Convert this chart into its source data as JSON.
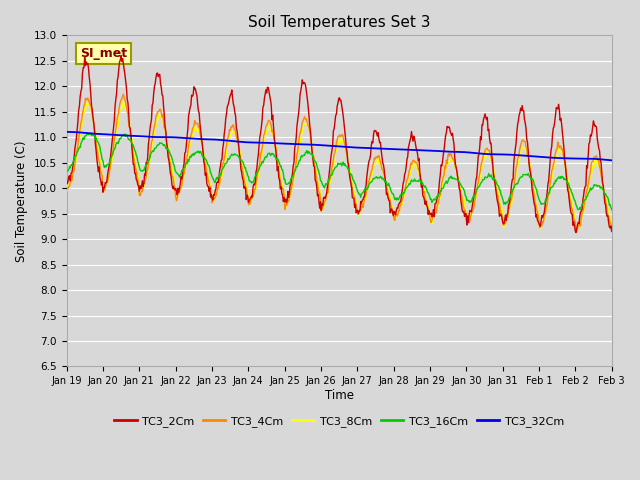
{
  "title": "Soil Temperatures Set 3",
  "xlabel": "Time",
  "ylabel": "Soil Temperature (C)",
  "ylim": [
    6.5,
    13.0
  ],
  "yticks": [
    6.5,
    7.0,
    7.5,
    8.0,
    8.5,
    9.0,
    9.5,
    10.0,
    10.5,
    11.0,
    11.5,
    12.0,
    12.5,
    13.0
  ],
  "xtick_labels": [
    "Jan 19",
    "Jan 20",
    "Jan 21",
    "Jan 22",
    "Jan 23",
    "Jan 24",
    "Jan 25",
    "Jan 26",
    "Jan 27",
    "Jan 28",
    "Jan 29",
    "Jan 30",
    "Jan 31",
    "Feb 1",
    "Feb 2",
    "Feb 3"
  ],
  "colors": {
    "TC3_2Cm": "#cc0000",
    "TC3_4Cm": "#ff8800",
    "TC3_8Cm": "#ffff00",
    "TC3_16Cm": "#00cc00",
    "TC3_32Cm": "#0000ee"
  },
  "bg_color": "#d8d8d8",
  "plot_bg": "#d8d8d8",
  "grid_color": "#ffffff",
  "annotation_text": "SI_met",
  "annotation_fg": "#880000",
  "annotation_bg": "#ffffaa",
  "annotation_edge": "#999900",
  "linewidth": 1.0
}
